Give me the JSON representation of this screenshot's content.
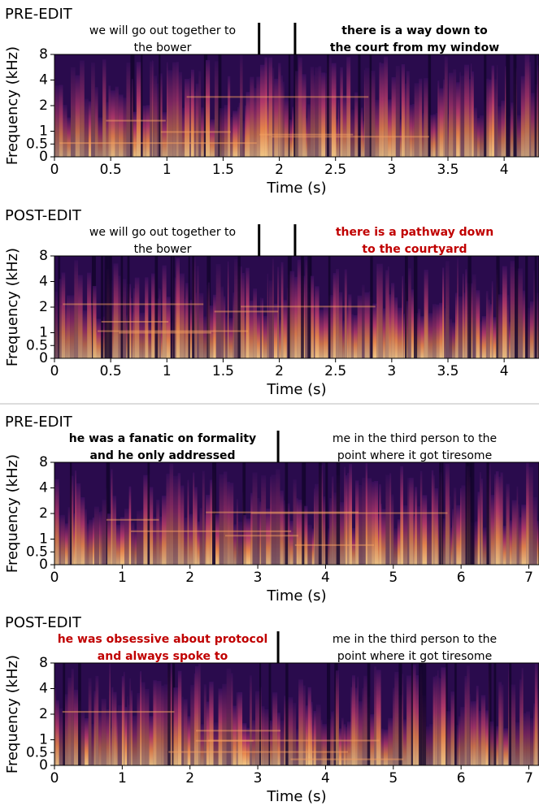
{
  "chart_data": [
    {
      "type": "spectrogram",
      "title": "PRE-EDIT",
      "annotations": [
        {
          "lines": [
            "we will go out together to",
            "the bower"
          ],
          "bold": false,
          "color": "#000000"
        },
        {
          "lines": [
            "there is a way down to",
            "the court from my window"
          ],
          "bold": true,
          "color": "#000000"
        }
      ],
      "boundaries": [
        1.82,
        2.14
      ],
      "xlabel": "Time (s)",
      "ylabel": "Frequency (kHz)",
      "xlim": [
        0,
        4.31
      ],
      "xticks": [
        0,
        0.5,
        1,
        1.5,
        2,
        2.5,
        3,
        3.5,
        4
      ],
      "ylim": [
        0,
        8
      ],
      "yticks": [
        0,
        0.5,
        1,
        2,
        4,
        8
      ],
      "yscale": "symlog",
      "linthresh": 1
    },
    {
      "type": "spectrogram",
      "title": "POST-EDIT",
      "annotations": [
        {
          "lines": [
            "we will go out together to",
            "the bower"
          ],
          "bold": false,
          "color": "#000000"
        },
        {
          "lines": [
            "there is a pathway down",
            "to the courtyard"
          ],
          "bold": true,
          "color": "#c00000"
        }
      ],
      "boundaries": [
        1.82,
        2.14
      ],
      "xlabel": "Time (s)",
      "ylabel": "Frequency (kHz)",
      "xlim": [
        0,
        4.31
      ],
      "xticks": [
        0,
        0.5,
        1,
        1.5,
        2,
        2.5,
        3,
        3.5,
        4
      ],
      "ylim": [
        0,
        8
      ],
      "yticks": [
        0,
        0.5,
        1,
        2,
        4,
        8
      ],
      "yscale": "symlog",
      "linthresh": 1
    },
    {
      "type": "spectrogram",
      "title": "PRE-EDIT",
      "annotations": [
        {
          "lines": [
            "he was a fanatic on formality",
            "and he only addressed"
          ],
          "bold": true,
          "color": "#000000"
        },
        {
          "lines": [
            "me in the third person to the",
            "point where it got tiresome"
          ],
          "bold": false,
          "color": "#000000"
        }
      ],
      "boundaries": [
        3.3
      ],
      "xlabel": "Time (s)",
      "ylabel": "Frequency (kHz)",
      "xlim": [
        0,
        7.15
      ],
      "xticks": [
        0,
        1,
        2,
        3,
        4,
        5,
        6,
        7
      ],
      "ylim": [
        0,
        8
      ],
      "yticks": [
        0,
        0.5,
        1,
        2,
        4,
        8
      ],
      "yscale": "symlog",
      "linthresh": 1
    },
    {
      "type": "spectrogram",
      "title": "POST-EDIT",
      "annotations": [
        {
          "lines": [
            "he was obsessive about protocol",
            "and always spoke to"
          ],
          "bold": true,
          "color": "#c00000"
        },
        {
          "lines": [
            "me in the third person to the",
            "point where it got tiresome"
          ],
          "bold": false,
          "color": "#000000"
        }
      ],
      "boundaries": [
        3.3
      ],
      "xlabel": "Time (s)",
      "ylabel": "Frequency (kHz)",
      "xlim": [
        0,
        7.15
      ],
      "xticks": [
        0,
        1,
        2,
        3,
        4,
        5,
        6,
        7
      ],
      "ylim": [
        0,
        8
      ],
      "yticks": [
        0,
        0.5,
        1,
        2,
        4,
        8
      ],
      "yscale": "symlog",
      "linthresh": 1
    }
  ]
}
